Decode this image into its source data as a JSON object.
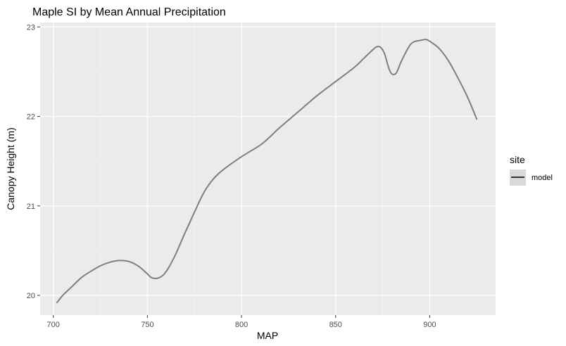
{
  "chart_data": {
    "type": "line",
    "title": "Maple SI by Mean Annual Precipitation",
    "xlabel": "MAP",
    "ylabel": "Canopy Height (m)",
    "xlim": [
      693,
      935
    ],
    "ylim": [
      19.78,
      23.05
    ],
    "x_ticks": [
      700,
      750,
      800,
      850,
      900
    ],
    "y_ticks": [
      20,
      21,
      22,
      23
    ],
    "grid": true,
    "legend": {
      "title": "site",
      "position": "right",
      "entries": [
        "model"
      ]
    },
    "series": [
      {
        "name": "model",
        "color": "#7f7f7f",
        "x": [
          702,
          705,
          710,
          715,
          720,
          725,
          730,
          735,
          740,
          745,
          750,
          752,
          755,
          758,
          761,
          765,
          770,
          775,
          780,
          785,
          790,
          800,
          810,
          815,
          820,
          830,
          840,
          850,
          860,
          865,
          870,
          872,
          874,
          876,
          879,
          882,
          885,
          890,
          895,
          898,
          900,
          905,
          910,
          915,
          920,
          925
        ],
        "y": [
          19.92,
          20.0,
          20.1,
          20.2,
          20.27,
          20.33,
          20.37,
          20.39,
          20.38,
          20.33,
          20.24,
          20.2,
          20.19,
          20.22,
          20.3,
          20.46,
          20.7,
          20.93,
          21.15,
          21.3,
          21.4,
          21.55,
          21.68,
          21.77,
          21.87,
          22.05,
          22.23,
          22.39,
          22.55,
          22.65,
          22.75,
          22.78,
          22.77,
          22.7,
          22.5,
          22.48,
          22.62,
          22.81,
          22.85,
          22.86,
          22.84,
          22.76,
          22.62,
          22.43,
          22.22,
          21.97
        ]
      }
    ]
  }
}
